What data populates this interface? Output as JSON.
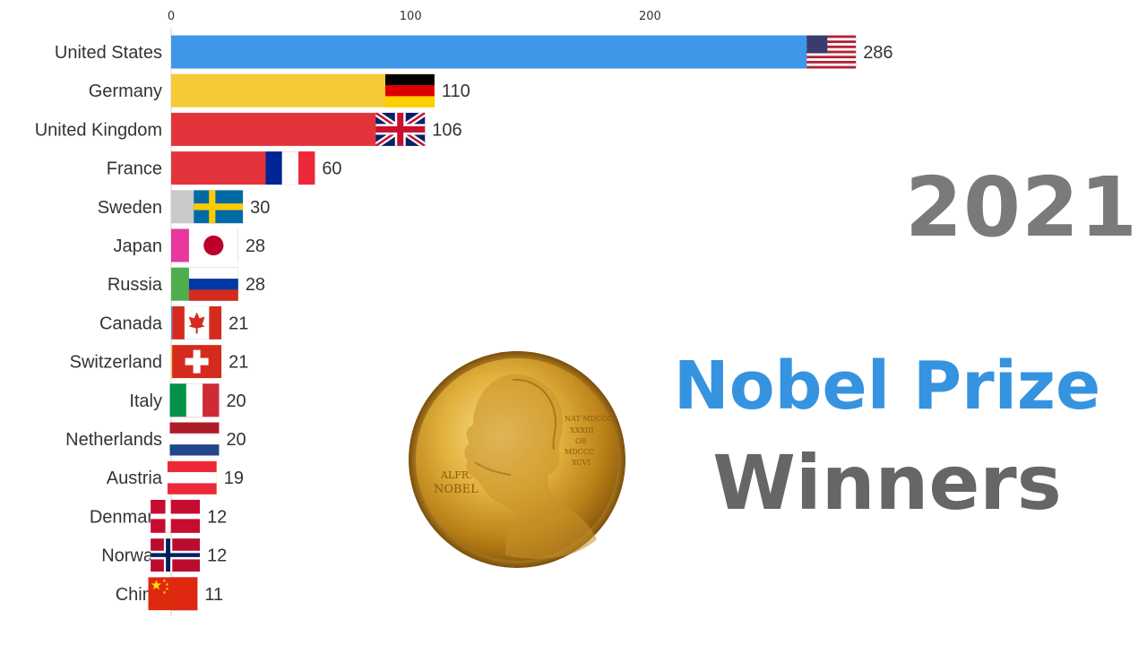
{
  "year_label": "2021",
  "title_line1": "Nobel Prize",
  "title_line2": "Winners",
  "medal_text": {
    "left": "ALFR. NOBEL",
    "right": "NAT MDCCC XXXIII OB MDCCC XCVI"
  },
  "colors": {
    "blue": "#3e97e8",
    "yellow": "#f6c936",
    "red": "#e4343b",
    "gray": "#c9c9c9",
    "pink": "#e8389f",
    "green": "#4eae4e",
    "axis_text": "#333333",
    "title_blue": "#3593e0",
    "title_gray": "#666666",
    "year_gray": "#7a7a7a"
  },
  "chart_data": {
    "type": "bar",
    "orientation": "horizontal",
    "x_ticks": [
      0,
      100,
      200
    ],
    "xlim": [
      0,
      286
    ],
    "categories": [
      "United States",
      "Germany",
      "United Kingdom",
      "France",
      "Sweden",
      "Japan",
      "Russia",
      "Canada",
      "Switzerland",
      "Italy",
      "Netherlands",
      "Austria",
      "Denmark",
      "Norway",
      "China"
    ],
    "values": [
      286,
      110,
      106,
      60,
      30,
      28,
      28,
      21,
      21,
      20,
      20,
      19,
      12,
      12,
      11
    ],
    "bar_colors": [
      "#3e97e8",
      "#f6c936",
      "#e4343b",
      "#e4343b",
      "#c9c9c9",
      "#e8389f",
      "#4eae4e",
      "#3e97e8",
      "#f6c936",
      "#e4343b",
      "#e4343b",
      "#f6c936",
      "#c9c9c9",
      "#c9c9c9",
      "#e8389f"
    ],
    "flags": [
      "us-flag",
      "germany-flag",
      "uk-flag",
      "france-flag",
      "sweden-flag",
      "japan-flag",
      "russia-flag",
      "canada-flag",
      "switzerland-flag",
      "italy-flag",
      "netherlands-flag",
      "austria-flag",
      "denmark-flag",
      "norway-flag",
      "china-flag"
    ]
  }
}
